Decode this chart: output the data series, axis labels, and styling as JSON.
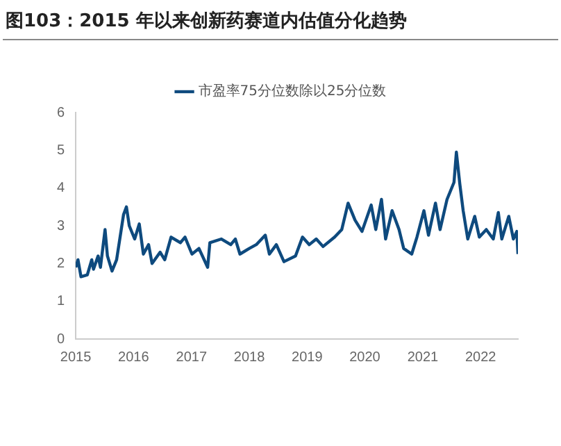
{
  "chart_data": {
    "type": "line",
    "title": "图103：2015 年以来创新药赛道内估值分化趋势",
    "series": [
      {
        "name": "市盈率75分位数除以25分位数",
        "color": "#0e4a7e",
        "x": [
          "2015-01-01",
          "2015-01-15",
          "2015-02-03",
          "2015-03-15",
          "2015-04-12",
          "2015-04-23",
          "2015-05-22",
          "2015-06-06",
          "2015-07-05",
          "2015-07-20",
          "2015-08-18",
          "2015-09-16",
          "2015-10-30",
          "2015-11-17",
          "2015-12-05",
          "2016-01-08",
          "2016-02-06",
          "2016-03-03",
          "2016-04-05",
          "2016-04-27",
          "2016-06-17",
          "2016-07-16",
          "2016-08-25",
          "2016-10-23",
          "2016-11-21",
          "2017-01-04",
          "2017-02-17",
          "2017-04-13",
          "2017-04-27",
          "2017-07-09",
          "2017-09-06",
          "2017-10-05",
          "2017-11-03",
          "2018-01-01",
          "2018-02-14",
          "2018-04-12",
          "2018-05-08",
          "2018-06-21",
          "2018-08-08",
          "2018-10-20",
          "2018-12-03",
          "2019-01-15",
          "2019-02-28",
          "2019-04-12",
          "2019-06-24",
          "2019-08-08",
          "2019-09-17",
          "2019-10-31",
          "2019-12-14",
          "2020-02-10",
          "2020-03-10",
          "2020-04-15",
          "2020-05-11",
          "2020-06-21",
          "2020-08-04",
          "2020-09-02",
          "2020-10-23",
          "2020-11-25",
          "2021-01-08",
          "2021-02-06",
          "2021-03-22",
          "2021-04-20",
          "2021-06-03",
          "2021-07-17",
          "2021-08-01",
          "2021-08-23",
          "2021-09-13",
          "2021-10-12",
          "2021-11-25",
          "2021-12-24",
          "2022-02-06",
          "2022-03-22",
          "2022-04-23",
          "2022-05-15",
          "2022-06-28",
          "2022-07-27",
          "2022-08-18",
          "2022-08-25"
        ],
        "values": [
          1.9,
          2.1,
          1.65,
          1.7,
          2.1,
          1.85,
          2.2,
          1.9,
          2.9,
          2.2,
          1.8,
          2.1,
          3.3,
          3.5,
          3.0,
          2.65,
          3.05,
          2.25,
          2.5,
          2.0,
          2.3,
          2.1,
          2.7,
          2.55,
          2.7,
          2.25,
          2.4,
          1.9,
          2.55,
          2.65,
          2.5,
          2.65,
          2.25,
          2.4,
          2.5,
          2.75,
          2.25,
          2.5,
          2.05,
          2.2,
          2.7,
          2.5,
          2.65,
          2.45,
          2.7,
          2.9,
          3.6,
          3.15,
          2.85,
          3.55,
          2.9,
          3.7,
          2.65,
          3.4,
          2.9,
          2.4,
          2.25,
          2.7,
          3.4,
          2.75,
          3.6,
          2.9,
          3.7,
          4.15,
          4.95,
          4.1,
          3.4,
          2.65,
          3.25,
          2.7,
          2.9,
          2.65,
          3.35,
          2.65,
          3.25,
          2.65,
          2.85,
          2.25
        ]
      }
    ],
    "xlim": [
      "2015",
      "2022-08-25"
    ],
    "xticks": [
      "2015",
      "2016",
      "2017",
      "2018",
      "2019",
      "2020",
      "2021",
      "2022"
    ],
    "ylim": [
      0,
      6
    ],
    "yticks": [
      0,
      1,
      2,
      3,
      4,
      5,
      6
    ],
    "grid": false,
    "legend": "top",
    "marker": "none",
    "line_style": "solid"
  }
}
